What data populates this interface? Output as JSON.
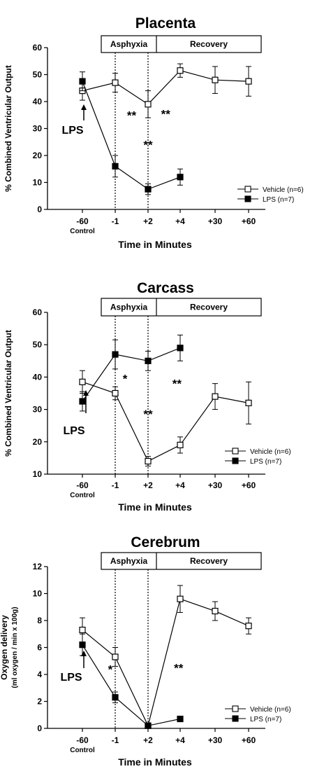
{
  "chart_data": [
    {
      "type": "line",
      "title": "Placenta",
      "ylabel": "% Combined Ventricular Output",
      "xlabel": "Time in Minutes",
      "categories": [
        "-60",
        "-1",
        "+2",
        "+4",
        "+30",
        "+60"
      ],
      "category_sublabel": {
        "index": 0,
        "text": "Control"
      },
      "ylim": [
        0,
        60
      ],
      "yticks": [
        0,
        10,
        20,
        30,
        40,
        50,
        60
      ],
      "phases": [
        {
          "label": "Asphyxia",
          "from": "-1",
          "to": "+2"
        },
        {
          "label": "Recovery",
          "from": "+2",
          "to": "+60"
        }
      ],
      "series": [
        {
          "name": "Vehicle (n=6)",
          "marker": "open-square",
          "values": [
            44,
            47,
            39,
            51.5,
            48,
            47.5
          ],
          "errors": [
            3.5,
            3.5,
            5,
            2.5,
            5,
            5.5
          ]
        },
        {
          "name": "LPS (n=7)",
          "marker": "filled-square",
          "values": [
            47.5,
            16,
            7.5,
            12,
            null,
            null
          ],
          "errors": [
            3.5,
            4,
            2,
            3,
            null,
            null
          ]
        }
      ],
      "annotations": [
        {
          "text": "LPS",
          "type": "arrow",
          "category": "-60"
        },
        {
          "text": "**",
          "category": 1.5,
          "y": 35.5
        },
        {
          "text": "**",
          "category": 2.0,
          "y": 24.5
        },
        {
          "text": "**",
          "category": 2.55,
          "y": 36
        }
      ],
      "legend": "lower-right"
    },
    {
      "type": "line",
      "title": "Carcass",
      "ylabel": "% Combined Ventricular Output",
      "xlabel": "Time in Minutes",
      "categories": [
        "-60",
        "-1",
        "+2",
        "+4",
        "+30",
        "+60"
      ],
      "category_sublabel": {
        "index": 0,
        "text": "Control"
      },
      "ylim": [
        10,
        60
      ],
      "yticks": [
        10,
        20,
        30,
        40,
        50,
        60
      ],
      "phases": [
        {
          "label": "Asphyxia",
          "from": "-1",
          "to": "+2"
        },
        {
          "label": "Recovery",
          "from": "+2",
          "to": "+60"
        }
      ],
      "series": [
        {
          "name": "Vehicle (n=6)",
          "marker": "open-square",
          "values": [
            38.5,
            35,
            14,
            19,
            34,
            32
          ],
          "errors": [
            3.5,
            2,
            1.5,
            2.5,
            4,
            6.5
          ]
        },
        {
          "name": "LPS (n=7)",
          "marker": "filled-square",
          "values": [
            32.5,
            47,
            45,
            49,
            null,
            null
          ],
          "errors": [
            3,
            4.5,
            3,
            4,
            null,
            null
          ]
        }
      ],
      "annotations": [
        {
          "text": "LPS",
          "type": "arrow",
          "category": "-60"
        },
        {
          "text": "*",
          "category": 1.3,
          "y": 40
        },
        {
          "text": "**",
          "category": 2.0,
          "y": 29
        },
        {
          "text": "**",
          "category": 2.9,
          "y": 38.5
        }
      ],
      "legend": "lower-right"
    },
    {
      "type": "line",
      "title": "Cerebrum",
      "ylabel": "Oxygen delivery",
      "ylabel2": "(ml oxygen / min x 100g)",
      "xlabel": "Time in Minutes",
      "categories": [
        "-60",
        "-1",
        "+2",
        "+4",
        "+30",
        "+60"
      ],
      "category_sublabel": {
        "index": 0,
        "text": "Control"
      },
      "ylim": [
        0,
        12
      ],
      "yticks": [
        0,
        2,
        4,
        6,
        8,
        10,
        12
      ],
      "phases": [
        {
          "label": "Asphyxia",
          "from": "-1",
          "to": "+2"
        },
        {
          "label": "Recovery",
          "from": "+2",
          "to": "+60"
        }
      ],
      "series": [
        {
          "name": "Vehicle (n=6)",
          "marker": "open-square",
          "values": [
            7.3,
            5.3,
            0.2,
            9.6,
            8.7,
            7.6
          ],
          "errors": [
            0.9,
            0.7,
            0.2,
            1.0,
            0.7,
            0.6
          ]
        },
        {
          "name": "LPS (n=7)",
          "marker": "filled-square",
          "values": [
            6.2,
            2.3,
            0.2,
            0.7,
            null,
            null
          ],
          "errors": [
            0.8,
            0.4,
            0.1,
            0.2,
            null,
            null
          ]
        }
      ],
      "annotations": [
        {
          "text": "LPS",
          "type": "arrow",
          "category": "-60"
        },
        {
          "text": "*",
          "category": 0.85,
          "y": 4.5
        },
        {
          "text": "**",
          "category": 2.95,
          "y": 4.6
        }
      ],
      "legend": "lower-right"
    }
  ]
}
